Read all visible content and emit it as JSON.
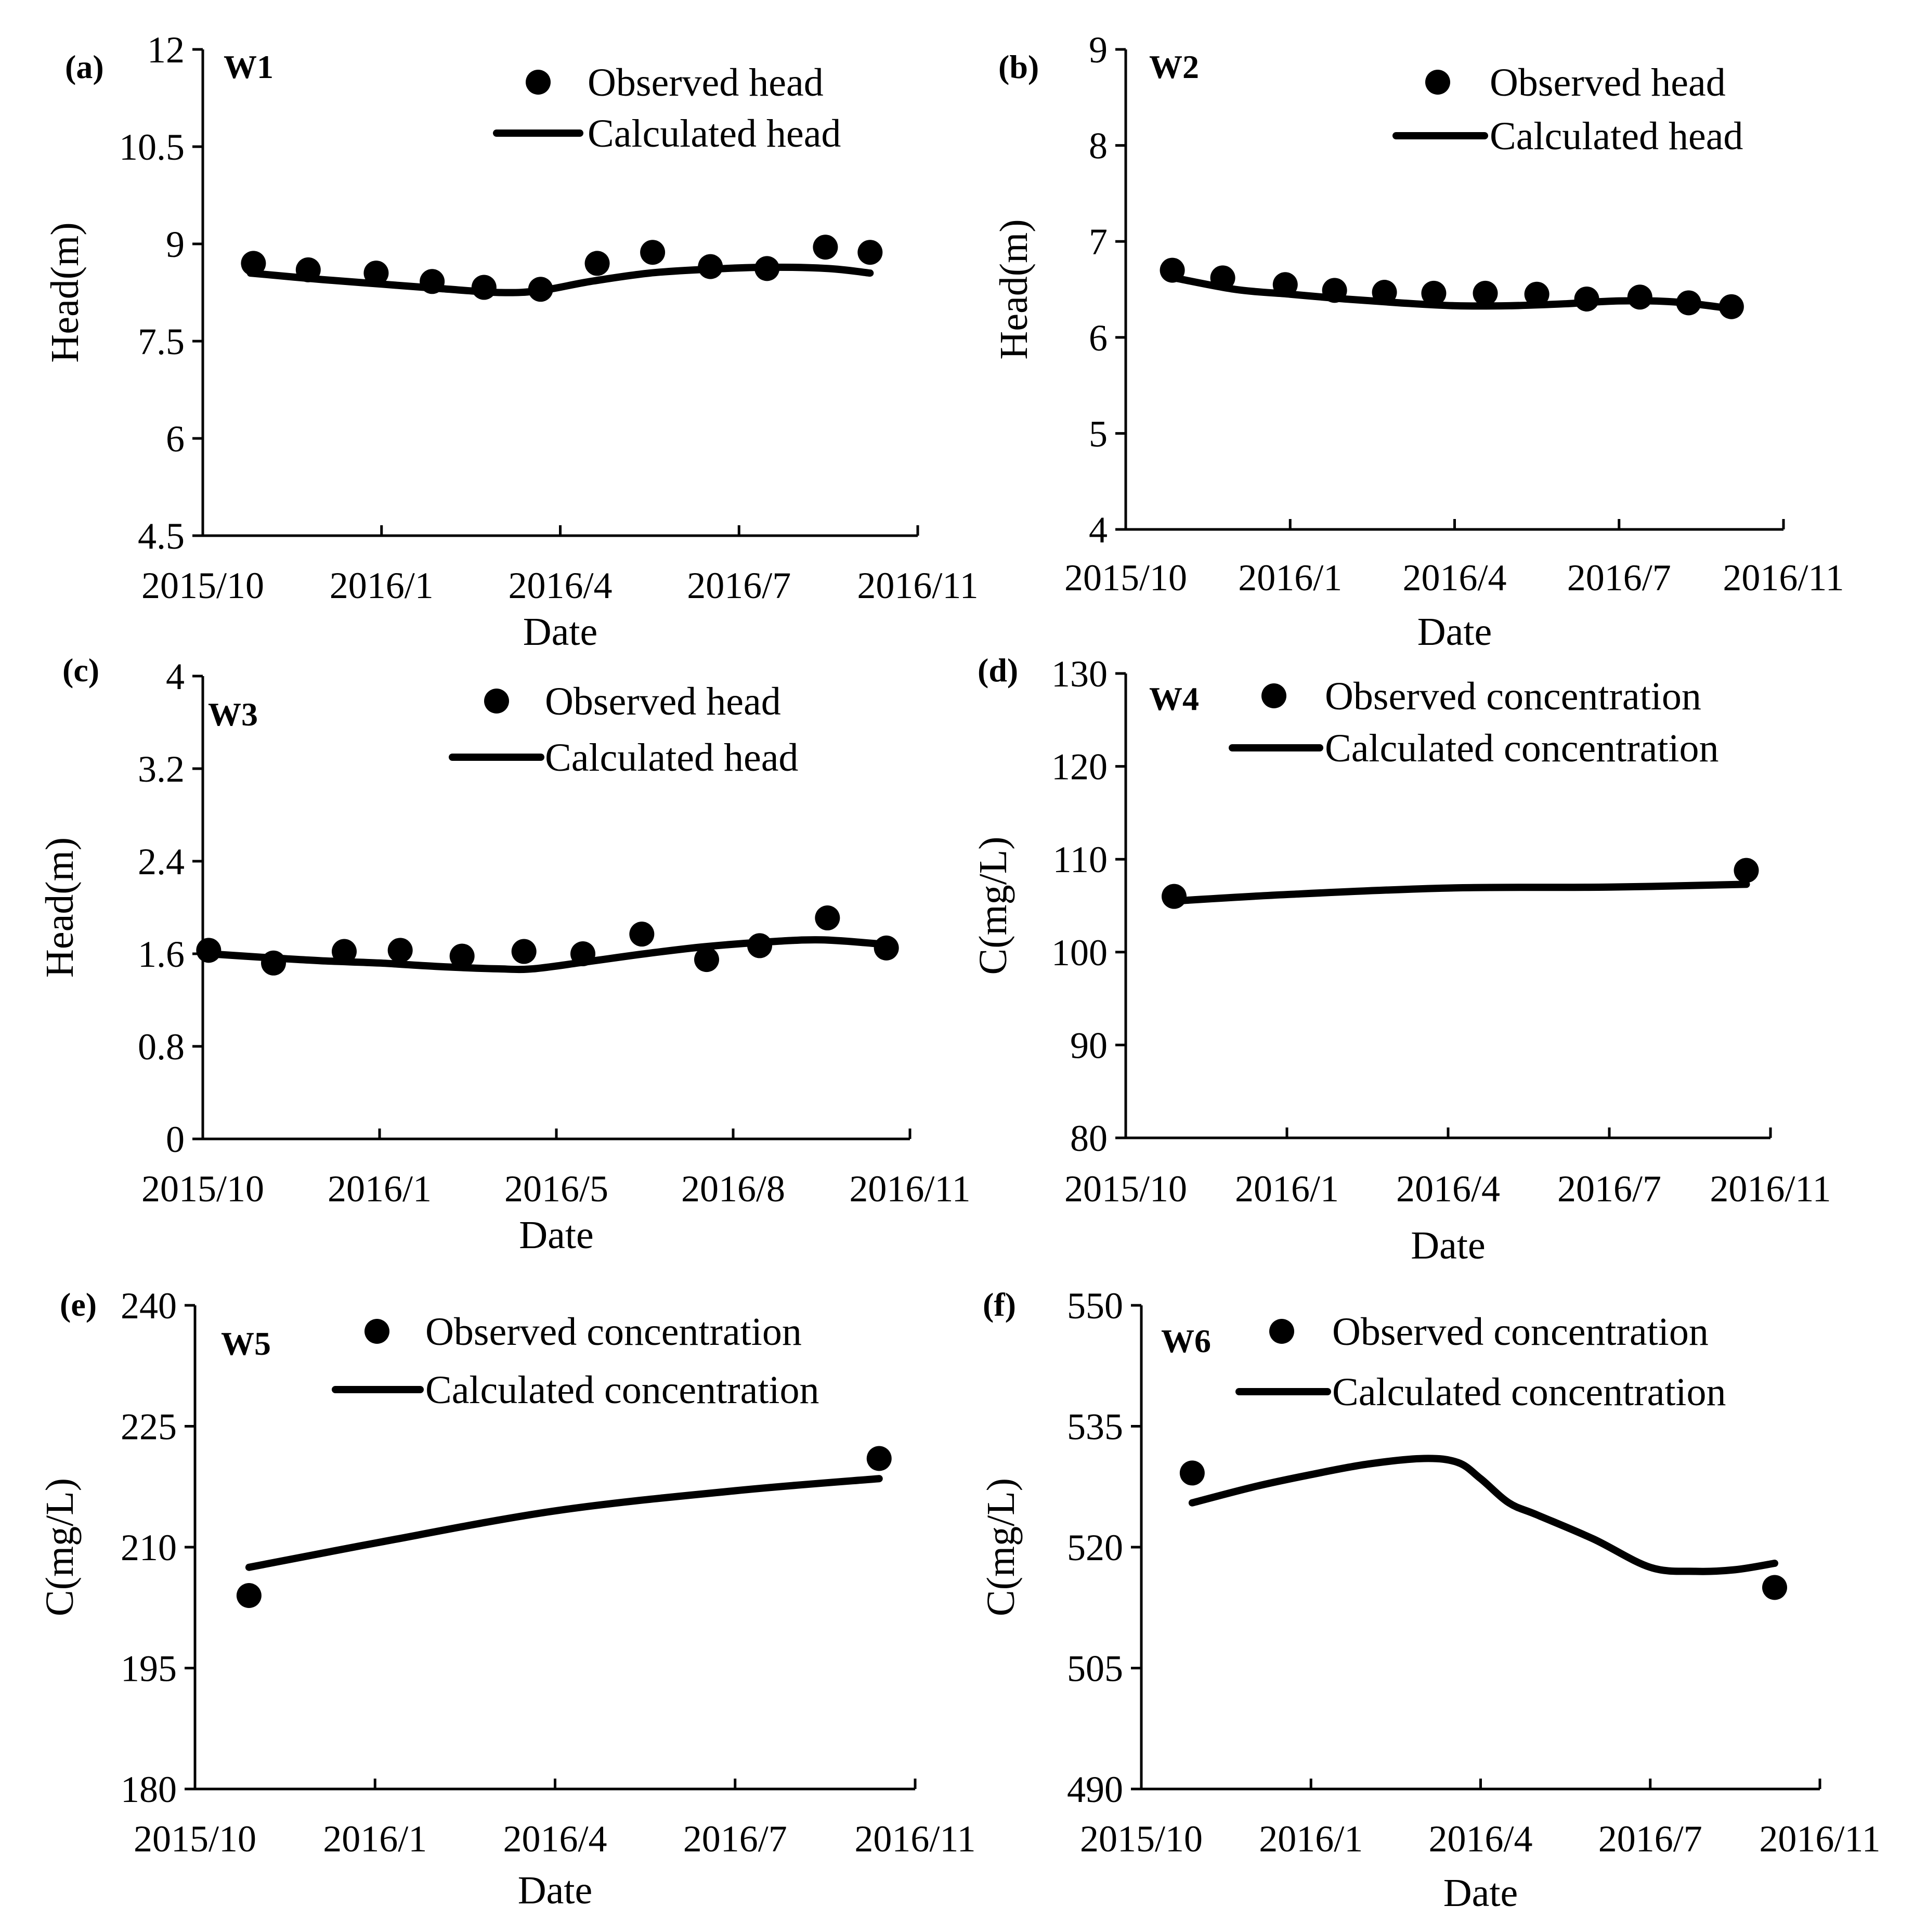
{
  "figure": {
    "legend": {
      "observed_head": "Observed head",
      "calculated_head": "Calculated head",
      "observed_concentration": "Observed concentration",
      "calculated_concentration": "Calculated concentration"
    },
    "colors": {
      "ink": "#000000",
      "background": "#ffffff"
    }
  },
  "chart_data": [
    {
      "id": "a",
      "type": "scatter+line",
      "panel_label": "(a)",
      "well": "W1",
      "xlabel": "Date",
      "ylabel": "Head(m)",
      "x_ticks": [
        "2015/10",
        "2016/1",
        "2016/4",
        "2016/7",
        "2016/11"
      ],
      "x_range": [
        0,
        12
      ],
      "ylim": [
        4.5,
        12
      ],
      "y_ticks": [
        "4.5",
        "6",
        "7.5",
        "9",
        "10.5",
        "12"
      ],
      "legend": [
        "Observed head",
        "Calculated head"
      ],
      "observed": {
        "x": [
          0.85,
          1.77,
          2.91,
          3.85,
          4.72,
          5.67,
          6.62,
          7.55,
          8.52,
          9.47,
          10.45,
          11.2
        ],
        "y": [
          8.7,
          8.6,
          8.55,
          8.42,
          8.33,
          8.3,
          8.7,
          8.87,
          8.65,
          8.62,
          8.95,
          8.87
        ]
      },
      "calculated": {
        "x": [
          0.8,
          2.0,
          3.0,
          4.0,
          5.0,
          5.67,
          6.5,
          7.5,
          8.5,
          9.5,
          10.5,
          11.2
        ],
        "y": [
          8.55,
          8.45,
          8.38,
          8.31,
          8.25,
          8.28,
          8.42,
          8.55,
          8.61,
          8.64,
          8.62,
          8.55
        ]
      }
    },
    {
      "id": "b",
      "type": "scatter+line",
      "panel_label": "(b)",
      "well": "W2",
      "xlabel": "Date",
      "ylabel": "Head(m)",
      "x_ticks": [
        "2015/10",
        "2016/1",
        "2016/4",
        "2016/7",
        "2016/11"
      ],
      "x_range": [
        0,
        12
      ],
      "ylim": [
        4,
        9
      ],
      "y_ticks": [
        "4",
        "5",
        "6",
        "7",
        "8",
        "9"
      ],
      "legend": [
        "Observed head",
        "Calculated head"
      ],
      "observed": {
        "x": [
          0.85,
          1.77,
          2.91,
          3.81,
          4.72,
          5.62,
          6.56,
          7.5,
          8.41,
          9.38,
          10.27,
          11.05
        ],
        "y": [
          6.7,
          6.62,
          6.55,
          6.49,
          6.47,
          6.46,
          6.46,
          6.45,
          6.4,
          6.42,
          6.36,
          6.32
        ]
      },
      "calculated": {
        "x": [
          0.8,
          2.0,
          3.0,
          4.0,
          5.0,
          6.0,
          7.0,
          8.0,
          9.0,
          10.0,
          11.05
        ],
        "y": [
          6.63,
          6.5,
          6.45,
          6.4,
          6.36,
          6.33,
          6.33,
          6.35,
          6.38,
          6.37,
          6.3
        ]
      }
    },
    {
      "id": "c",
      "type": "scatter+line",
      "panel_label": "(c)",
      "well": "W3",
      "xlabel": "Date",
      "ylabel": "Head(m)",
      "x_ticks": [
        "2015/10",
        "2016/1",
        "2016/5",
        "2016/8",
        "2016/11"
      ],
      "x_range": [
        0,
        12
      ],
      "ylim": [
        0,
        4
      ],
      "y_ticks": [
        "0",
        "0.8",
        "1.6",
        "2.4",
        "3.2",
        "4"
      ],
      "legend": [
        "Observed head",
        "Calculated head"
      ],
      "observed": {
        "x": [
          0.1,
          1.2,
          2.4,
          3.35,
          4.4,
          5.45,
          6.45,
          7.45,
          8.55,
          9.45,
          10.6,
          11.6
        ],
        "y": [
          1.63,
          1.52,
          1.62,
          1.63,
          1.58,
          1.62,
          1.6,
          1.77,
          1.55,
          1.67,
          1.91,
          1.65
        ]
      },
      "calculated": {
        "x": [
          0.1,
          1.0,
          2.0,
          3.0,
          4.0,
          5.0,
          5.6,
          6.5,
          7.5,
          8.5,
          9.5,
          10.5,
          11.6
        ],
        "y": [
          1.6,
          1.57,
          1.54,
          1.52,
          1.49,
          1.47,
          1.47,
          1.53,
          1.6,
          1.66,
          1.7,
          1.72,
          1.68
        ]
      }
    },
    {
      "id": "d",
      "type": "scatter+line",
      "panel_label": "(d)",
      "well": "W4",
      "xlabel": "Date",
      "ylabel": "C(mg/L)",
      "x_ticks": [
        "2015/10",
        "2016/1",
        "2016/4",
        "2016/7",
        "2016/11"
      ],
      "x_range": [
        0,
        12
      ],
      "ylim": [
        80,
        130
      ],
      "y_ticks": [
        "80",
        "90",
        "100",
        "110",
        "120",
        "130"
      ],
      "legend": [
        "Observed concentration",
        "Calculated concentration"
      ],
      "observed": {
        "x": [
          0.9,
          11.55
        ],
        "y": [
          106,
          108.8
        ]
      },
      "calculated": {
        "x": [
          0.9,
          3.0,
          6.0,
          9.0,
          11.55
        ],
        "y": [
          105.5,
          106.2,
          106.9,
          107.0,
          107.3
        ]
      }
    },
    {
      "id": "e",
      "type": "scatter+line",
      "panel_label": "(e)",
      "well": "W5",
      "xlabel": "Date",
      "ylabel": "C(mg/L)",
      "x_ticks": [
        "2015/10",
        "2016/1",
        "2016/4",
        "2016/7",
        "2016/11"
      ],
      "x_range": [
        0,
        12
      ],
      "ylim": [
        180,
        240
      ],
      "y_ticks": [
        "180",
        "195",
        "210",
        "225",
        "240"
      ],
      "legend": [
        "Observed concentration",
        "Calculated concentration"
      ],
      "observed": {
        "x": [
          0.9,
          11.4
        ],
        "y": [
          204,
          221
        ]
      },
      "calculated": {
        "x": [
          0.9,
          3.0,
          6.0,
          9.0,
          11.4
        ],
        "y": [
          207.5,
          210.5,
          214.5,
          217.0,
          218.5
        ]
      }
    },
    {
      "id": "f",
      "type": "scatter+line",
      "panel_label": "(f)",
      "well": "W6",
      "xlabel": "Date",
      "ylabel": "C(mg/L)",
      "x_ticks": [
        "2015/10",
        "2016/1",
        "2016/4",
        "2016/7",
        "2016/11"
      ],
      "x_range": [
        0,
        12
      ],
      "ylim": [
        490,
        550
      ],
      "y_ticks": [
        "490",
        "505",
        "520",
        "535",
        "550"
      ],
      "legend": [
        "Observed concentration",
        "Calculated concentration"
      ],
      "observed": {
        "x": [
          0.9,
          11.2
        ],
        "y": [
          529.2,
          515
        ]
      },
      "calculated": {
        "x": [
          0.9,
          2.0,
          3.0,
          4.0,
          5.0,
          5.6,
          6.0,
          6.5,
          7.0,
          8.0,
          9.0,
          9.8,
          10.5,
          11.2
        ],
        "y": [
          525.5,
          527.5,
          529.0,
          530.3,
          531.0,
          530.5,
          528.5,
          525.5,
          524.0,
          521.0,
          517.5,
          517.0,
          517.2,
          518.0
        ]
      }
    }
  ]
}
